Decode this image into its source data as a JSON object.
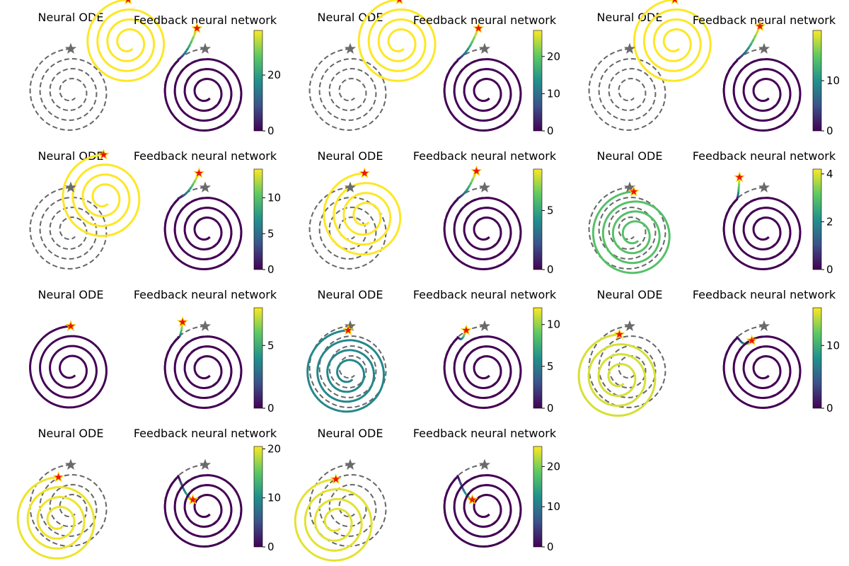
{
  "palette": {
    "reference": "#666666",
    "start_marker": "#ee1111",
    "end_marker": "#6a6a6a",
    "viridis": [
      "#440154",
      "#3b528b",
      "#21918c",
      "#5ec962",
      "#fde725"
    ]
  },
  "chart_data": [
    {
      "type": "line",
      "groups": [
        {
          "ode": {
            "title": "Neural ODE",
            "center": [
              1.4,
              1.2
            ],
            "error": 36
          },
          "fb": {
            "title": "Feedback neural network",
            "start": [
              -0.2,
              1.55
            ],
            "spike": 36
          },
          "cbar": {
            "vmax": 36,
            "ticks": [
              0,
              20
            ]
          }
        },
        {
          "ode": {
            "title": "Neural ODE",
            "center": [
              1.2,
              1.2
            ],
            "error": 27
          },
          "fb": {
            "title": "Feedback neural network",
            "start": [
              -0.15,
              1.55
            ],
            "spike": 27
          },
          "cbar": {
            "vmax": 27,
            "ticks": [
              0,
              10,
              20
            ]
          }
        },
        {
          "ode": {
            "title": "Neural ODE",
            "center": [
              1.1,
              1.2
            ],
            "error": 20
          },
          "fb": {
            "title": "Feedback neural network",
            "start": [
              -0.1,
              1.6
            ],
            "spike": 20
          },
          "cbar": {
            "vmax": 20,
            "ticks": [
              0,
              10
            ]
          }
        },
        {
          "ode": {
            "title": "Neural ODE",
            "center": [
              0.8,
              0.8
            ],
            "error": 14
          },
          "fb": {
            "title": "Feedback neural network",
            "start": [
              -0.15,
              1.4
            ],
            "spike": 14
          },
          "cbar": {
            "vmax": 14,
            "ticks": [
              0,
              5,
              10
            ]
          }
        },
        {
          "ode": {
            "title": "Neural ODE",
            "center": [
              0.35,
              0.35
            ],
            "error": 8.5
          },
          "fb": {
            "title": "Feedback neural network",
            "start": [
              -0.2,
              1.45
            ],
            "spike": 8.5
          },
          "cbar": {
            "vmax": 8.5,
            "ticks": [
              0,
              5
            ]
          }
        },
        {
          "ode": {
            "title": "Neural ODE",
            "center": [
              0.1,
              -0.1
            ],
            "error": 3
          },
          "fb": {
            "title": "Feedback neural network",
            "start": [
              -0.6,
              1.3
            ],
            "spike": 4.2
          },
          "cbar": {
            "vmax": 4.2,
            "ticks": [
              0,
              2,
              4
            ]
          }
        },
        {
          "ode": {
            "title": "Neural ODE",
            "center": [
              0.0,
              0.0
            ],
            "error": 0
          },
          "fb": {
            "title": "Feedback neural network",
            "start": [
              -0.55,
              1.15
            ],
            "spike": 8
          },
          "cbar": {
            "vmax": 8,
            "ticks": [
              0,
              5
            ]
          }
        },
        {
          "ode": {
            "title": "Neural ODE",
            "center": [
              -0.05,
              -0.1
            ],
            "error": 5.5
          },
          "fb": {
            "title": "Feedback neural network",
            "start": [
              -0.45,
              0.95
            ],
            "spike": 12
          },
          "cbar": {
            "vmax": 12,
            "ticks": [
              0,
              5,
              10
            ]
          }
        },
        {
          "ode": {
            "title": "Neural ODE",
            "center": [
              -0.25,
              -0.2
            ],
            "error": 15
          },
          "fb": {
            "title": "Feedback neural network",
            "start": [
              -0.3,
              0.7
            ],
            "spike": 16
          },
          "cbar": {
            "vmax": 16,
            "ticks": [
              0,
              10
            ]
          }
        },
        {
          "ode": {
            "title": "Neural ODE",
            "center": [
              -0.3,
              -0.3
            ],
            "error": 20
          },
          "fb": {
            "title": "Feedback neural network",
            "start": [
              -0.3,
              0.2
            ],
            "spike": 20.5
          },
          "cbar": {
            "vmax": 20.5,
            "ticks": [
              0,
              10,
              20
            ]
          }
        },
        {
          "ode": {
            "title": "Neural ODE",
            "center": [
              -0.35,
              -0.35
            ],
            "error": 24
          },
          "fb": {
            "title": "Feedback neural network",
            "start": [
              -0.3,
              0.2
            ],
            "spike": 25
          },
          "cbar": {
            "vmax": 25,
            "ticks": [
              0,
              10,
              20
            ]
          }
        }
      ]
    }
  ]
}
